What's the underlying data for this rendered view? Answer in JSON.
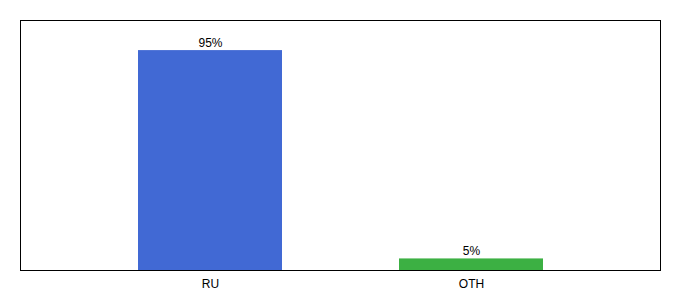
{
  "chart_data": {
    "type": "bar",
    "categories": [
      "RU",
      "OTH"
    ],
    "values": [
      95,
      5
    ],
    "value_labels": [
      "95%",
      "5%"
    ],
    "colors": [
      "#4169d4",
      "#3cb043"
    ],
    "ylim": [
      0,
      108
    ],
    "tick_labels": "x",
    "data_labels": true
  }
}
